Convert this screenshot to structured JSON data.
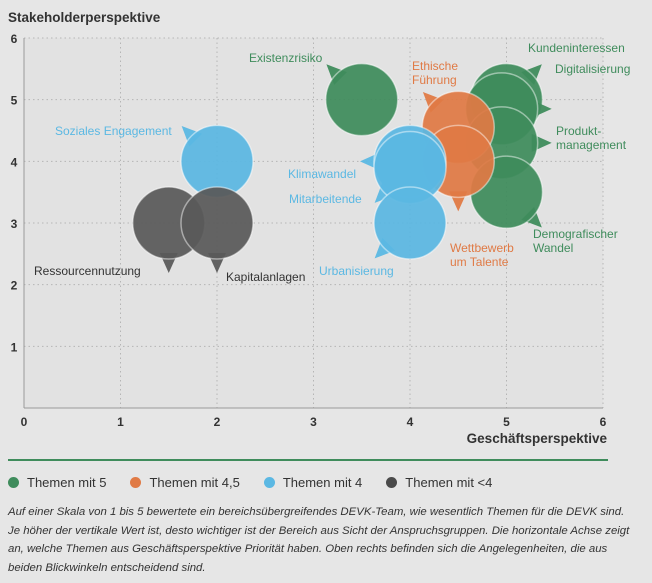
{
  "chart_data": {
    "type": "scatter",
    "ylabel": "Stakeholderperspektive",
    "xlabel": "Geschäftsperspektive",
    "xlim": [
      0,
      6
    ],
    "ylim": [
      0,
      6
    ],
    "xticks": [
      "0",
      "1",
      "2",
      "3",
      "4",
      "5",
      "6"
    ],
    "yticks": [
      "1",
      "2",
      "3",
      "4",
      "5",
      "6"
    ],
    "grid": true,
    "series": [
      {
        "name": "Themen mit 5",
        "color": "#3f8c5c",
        "points": [
          {
            "label": "Existenzrisiko",
            "x": 3.5,
            "y": 5.0
          },
          {
            "label": "Kundeninteressen",
            "x": 5.0,
            "y": 5.0
          },
          {
            "label": "Digitalisierung",
            "x": 4.95,
            "y": 4.85
          },
          {
            "label": "Produkt-\nmanagement",
            "x": 4.95,
            "y": 4.3
          },
          {
            "label": "Demografischer\nWandel",
            "x": 5.0,
            "y": 3.5
          }
        ]
      },
      {
        "name": "Themen mit 4,5",
        "color": "#e07a45",
        "points": [
          {
            "label": "Ethische\nFührung",
            "x": 4.5,
            "y": 4.55
          },
          {
            "label": "Wettbewerb\num Talente",
            "x": 4.5,
            "y": 4.0
          }
        ]
      },
      {
        "name": "Themen mit 4",
        "color": "#5bb8e3",
        "points": [
          {
            "label": "Soziales Engagement",
            "x": 2.0,
            "y": 4.0
          },
          {
            "label": "Klimawandel",
            "x": 4.0,
            "y": 4.0
          },
          {
            "label": "Mitarbeitende",
            "x": 4.0,
            "y": 3.9
          },
          {
            "label": "Urbanisierung",
            "x": 4.0,
            "y": 3.0
          }
        ]
      },
      {
        "name": "Themen mit <4",
        "color": "#5a5a5a",
        "points": [
          {
            "label": "Ressourcennutzung",
            "x": 1.5,
            "y": 3.0
          },
          {
            "label": "Kapitalanlagen",
            "x": 2.0,
            "y": 3.0
          }
        ]
      }
    ]
  },
  "legend": [
    {
      "label": "Themen mit 5",
      "color": "#3f8c5c"
    },
    {
      "label": "Themen mit 4,5",
      "color": "#e07a45"
    },
    {
      "label": "Themen mit 4",
      "color": "#5bb8e3"
    },
    {
      "label": "Themen mit <4",
      "color": "#4a4a4a"
    }
  ],
  "note": "Auf einer Skala von 1 bis 5 bewertete ein bereichsübergreifendes DEVK-Team, wie wesentlich Themen für die DEVK sind. Je höher der vertikale Wert ist, desto wichtiger ist der Bereich aus Sicht der Anspruchsgruppen. Die horizontale Achse zeigt an, welche Themen aus Geschäftsperspektive Priorität haben. Oben rechts befinden sich die Angelegenheiten, die aus beiden Blickwinkeln entscheidend sind."
}
